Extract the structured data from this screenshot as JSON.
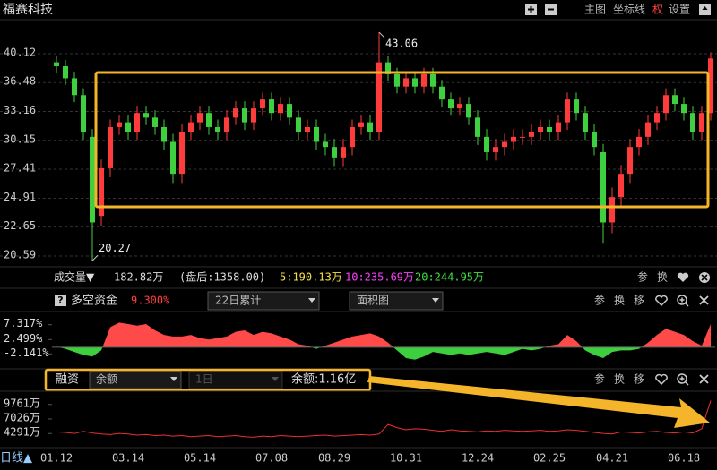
{
  "header": {
    "title": "福赛科技",
    "buttons": [
      "主图",
      "坐标线",
      "权",
      "设置"
    ]
  },
  "price_panel": {
    "chart_data": {
      "type": "candlestick",
      "categories": [
        "01.12",
        null,
        null,
        null,
        null,
        null,
        null,
        null,
        "03.14",
        null,
        null,
        null,
        null,
        null,
        null,
        null,
        "05.14",
        null,
        null,
        null,
        null,
        null,
        null,
        null,
        "07.08",
        null,
        null,
        null,
        null,
        null,
        null,
        "08.29",
        null,
        null,
        null,
        null,
        null,
        null,
        null,
        "10.31",
        null,
        null,
        null,
        null,
        null,
        null,
        null,
        "12.24",
        null,
        null,
        null,
        null,
        null,
        null,
        null,
        "02.25",
        null,
        null,
        null,
        null,
        null,
        null,
        "04.21",
        null,
        null,
        null,
        null,
        null,
        null,
        null,
        "06.18",
        null,
        null,
        null
      ],
      "open": [
        39.0,
        38.5,
        37.0,
        35.0,
        30.5,
        23.5,
        27.5,
        31.5,
        32.0,
        31.0,
        33.0,
        32.5,
        31.5,
        30.0,
        27.0,
        31.0,
        32.0,
        33.0,
        31.5,
        31.0,
        32.5,
        33.5,
        32.0,
        33.5,
        34.5,
        33.0,
        34.0,
        32.5,
        31.0,
        31.5,
        30.0,
        29.5,
        28.5,
        29.5,
        31.5,
        32.0,
        31.0,
        39.0,
        37.5,
        36.0,
        37.0,
        36.0,
        37.5,
        36.0,
        34.5,
        33.5,
        34.0,
        32.5,
        30.5,
        29.0,
        29.5,
        30.0,
        30.5,
        30.5,
        31.0,
        31.5,
        31.0,
        32.0,
        34.5,
        33.0,
        31.0,
        29.0,
        23.0,
        25.0,
        27.0,
        29.5,
        30.5,
        32.0,
        33.0,
        35.0,
        34.0,
        33.0,
        31.0,
        33.0
      ],
      "high": [
        39.8,
        39.3,
        37.8,
        35.8,
        31.3,
        28.3,
        32.3,
        32.8,
        32.8,
        33.8,
        33.8,
        33.3,
        32.3,
        30.8,
        31.8,
        32.8,
        33.8,
        33.8,
        32.3,
        33.3,
        34.3,
        34.3,
        34.3,
        35.3,
        35.3,
        34.8,
        34.8,
        33.3,
        32.3,
        32.3,
        30.8,
        30.3,
        30.3,
        32.3,
        32.8,
        32.8,
        43.06,
        39.8,
        38.3,
        37.8,
        37.8,
        38.3,
        38.3,
        36.8,
        35.3,
        34.8,
        34.8,
        33.3,
        31.3,
        30.3,
        30.8,
        31.3,
        31.3,
        31.8,
        32.3,
        32.3,
        32.8,
        35.3,
        35.3,
        33.8,
        31.8,
        29.8,
        25.8,
        27.8,
        30.3,
        31.3,
        32.8,
        33.8,
        35.8,
        35.8,
        34.8,
        33.8,
        33.8,
        40.3
      ],
      "low": [
        37.7,
        36.2,
        34.2,
        30.2,
        20.27,
        22.7,
        26.7,
        30.7,
        30.2,
        30.2,
        31.7,
        30.7,
        29.2,
        26.2,
        26.2,
        30.2,
        31.2,
        30.7,
        30.2,
        30.2,
        31.7,
        31.2,
        31.2,
        32.7,
        32.2,
        32.2,
        31.7,
        30.2,
        30.2,
        29.2,
        28.7,
        27.7,
        27.7,
        28.7,
        30.7,
        30.2,
        30.2,
        36.7,
        35.2,
        35.2,
        35.2,
        35.2,
        35.2,
        33.7,
        32.7,
        32.7,
        31.7,
        29.7,
        28.2,
        28.2,
        28.7,
        29.2,
        29.7,
        29.7,
        30.2,
        30.2,
        30.2,
        31.2,
        32.2,
        30.2,
        28.7,
        21.5,
        22.2,
        24.2,
        26.2,
        28.7,
        29.7,
        31.2,
        32.2,
        33.2,
        32.2,
        30.2,
        30.2,
        32.2
      ],
      "close": [
        38.5,
        37.0,
        35.0,
        31.0,
        23.0,
        27.5,
        31.5,
        32.0,
        31.0,
        33.0,
        32.5,
        31.5,
        30.0,
        27.0,
        31.0,
        32.0,
        33.0,
        31.5,
        31.0,
        32.5,
        33.5,
        32.0,
        33.5,
        34.5,
        33.0,
        34.0,
        32.5,
        31.0,
        31.5,
        30.0,
        29.5,
        28.5,
        29.5,
        31.5,
        32.0,
        31.0,
        39.0,
        37.5,
        36.0,
        37.0,
        36.0,
        37.5,
        36.0,
        34.5,
        33.5,
        34.0,
        32.5,
        30.5,
        29.0,
        29.5,
        30.0,
        30.5,
        30.5,
        31.0,
        31.5,
        31.0,
        32.0,
        34.5,
        33.0,
        31.0,
        29.5,
        23.0,
        25.0,
        27.0,
        29.5,
        30.5,
        32.0,
        33.0,
        35.0,
        34.0,
        33.0,
        31.0,
        33.0,
        39.5
      ],
      "max_label": "43.06",
      "min_label": "20.27",
      "ylim": [
        19.93,
        44.62
      ],
      "yticks": [
        40.12,
        36.48,
        33.16,
        30.15,
        27.41,
        24.91,
        22.65,
        20.59
      ],
      "log": true,
      "grid": true,
      "up_color": "#ff3b3b",
      "down_color": "#3fd03f"
    }
  },
  "volume_info": {
    "label": "成交量▼",
    "value": "182.82万",
    "after_hours": "(盘后:1358.00)",
    "ma5": "5:190.13万",
    "ma10": "10:235.69万",
    "ma20": "20:244.95万",
    "buttons": [
      "参",
      "换"
    ]
  },
  "fund_panel": {
    "help": "?",
    "title": "多空资金",
    "value": "9.300%",
    "dropdowns": [
      "22日累计",
      "面积图"
    ],
    "buttons": [
      "参",
      "换",
      "移"
    ],
    "chart_data": {
      "type": "area",
      "values": [
        0.2,
        -0.5,
        -1.5,
        -2.5,
        -3.0,
        -1.0,
        6.5,
        8.0,
        7.5,
        7.0,
        7.5,
        5.5,
        4.0,
        3.5,
        3.5,
        4.0,
        3.0,
        2.5,
        3.0,
        3.5,
        5.0,
        5.5,
        4.0,
        5.0,
        4.5,
        3.5,
        2.5,
        1.0,
        0.5,
        -0.5,
        0.5,
        1.5,
        2.5,
        3.5,
        4.0,
        4.5,
        3.5,
        1.5,
        -1.0,
        -3.5,
        -4.0,
        -3.0,
        -1.5,
        -2.0,
        -2.5,
        -2.0,
        -2.5,
        -2.0,
        -1.5,
        -2.0,
        -2.5,
        -1.5,
        -0.5,
        -1.0,
        -0.5,
        0.5,
        1.0,
        4.0,
        2.0,
        -1.0,
        -2.5,
        -3.5,
        -1.5,
        -1.0,
        -1.0,
        -0.5,
        1.5,
        4.0,
        6.0,
        5.0,
        4.0,
        2.0,
        0.5,
        7.5
      ],
      "ylim": [
        -6.7,
        11.0
      ],
      "yticks": [
        {
          "value": 7.317,
          "label": "7.317%"
        },
        {
          "value": 2.499,
          "label": "2.499%"
        },
        {
          "value": -2.141,
          "label": "-2.141%"
        }
      ],
      "up_color": "#ff4a4a",
      "down_color": "#3ecf3e"
    }
  },
  "margin_panel": {
    "title": "融资",
    "dropdowns": [
      "余额",
      "1日"
    ],
    "value": "余额:1.16亿",
    "buttons": [
      "参",
      "换",
      "移"
    ],
    "chart_data": {
      "type": "line",
      "values": [
        4600,
        4500,
        4300,
        4700,
        4400,
        4200,
        4100,
        4300,
        4200,
        4000,
        4100,
        3900,
        4000,
        3800,
        3900,
        3700,
        3800,
        3900,
        3700,
        3800,
        3900,
        3700,
        3600,
        3800,
        3700,
        3900,
        3800,
        3700,
        3800,
        3900,
        4000,
        3800,
        3900,
        4000,
        4100,
        4000,
        4200,
        6000,
        5400,
        5000,
        5200,
        5100,
        4900,
        4700,
        5000,
        4800,
        4700,
        4600,
        4800,
        4700,
        4900,
        4800,
        4700,
        4800,
        4900,
        4700,
        4800,
        5000,
        4900,
        4700,
        4500,
        4300,
        4200,
        4600,
        4500,
        4400,
        4600,
        4700,
        4500,
        4400,
        4600,
        4400,
        5200,
        10500
      ],
      "ylim": [
        1800,
        11750
      ],
      "yticks": [
        {
          "value": 9761,
          "label": "9761万"
        },
        {
          "value": 7026,
          "label": "7026万"
        },
        {
          "value": 4291,
          "label": "4291万"
        }
      ],
      "color": "#e83030"
    }
  },
  "x_axis": {
    "label": "日线▲"
  }
}
